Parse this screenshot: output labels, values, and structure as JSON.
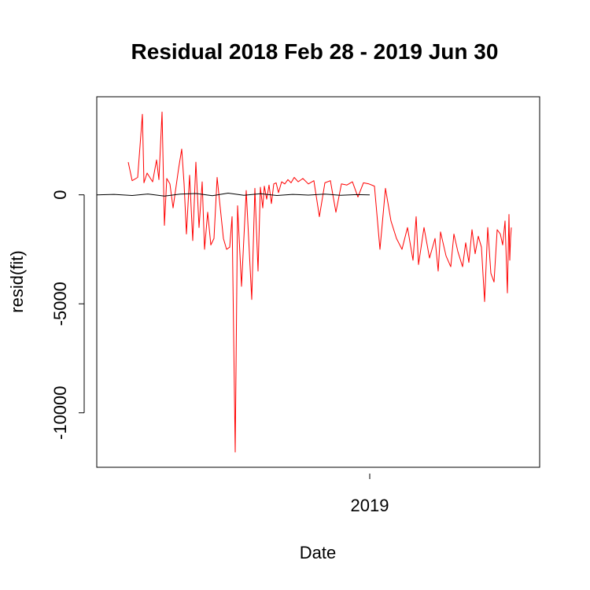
{
  "chart_data": {
    "type": "line",
    "title": "Residual  2018 Feb 28 - 2019 Jun 30",
    "xlabel": "Date",
    "ylabel": "resid(fit)",
    "xlim": [
      "2018-01-19",
      "2019-08-05"
    ],
    "ylim": [
      -12500,
      4500
    ],
    "grid": false,
    "legend": "none",
    "x_ticks": [
      {
        "label": "2019",
        "date": "2019-01-01"
      }
    ],
    "y_ticks": [
      {
        "label": "0",
        "value": 0
      },
      {
        "label": "-5000",
        "value": -5000
      },
      {
        "label": "-10000",
        "value": -10000
      }
    ],
    "series": [
      {
        "color": "#ff0000",
        "x": [
          "2018-02-28",
          "2018-03-05",
          "2018-03-12",
          "2018-03-18",
          "2018-03-20",
          "2018-03-24",
          "2018-03-31",
          "2018-04-05",
          "2018-04-08",
          "2018-04-12",
          "2018-04-15",
          "2018-04-18",
          "2018-04-22",
          "2018-04-26",
          "2018-05-03",
          "2018-05-07",
          "2018-05-10",
          "2018-05-13",
          "2018-05-17",
          "2018-05-21",
          "2018-05-25",
          "2018-05-29",
          "2018-06-02",
          "2018-06-05",
          "2018-06-09",
          "2018-06-13",
          "2018-06-17",
          "2018-06-21",
          "2018-06-25",
          "2018-06-29",
          "2018-07-03",
          "2018-07-07",
          "2018-07-10",
          "2018-07-14",
          "2018-07-17",
          "2018-07-22",
          "2018-07-28",
          "2018-08-04",
          "2018-08-08",
          "2018-08-12",
          "2018-08-15",
          "2018-08-18",
          "2018-08-20",
          "2018-08-23",
          "2018-08-26",
          "2018-08-29",
          "2018-09-01",
          "2018-09-04",
          "2018-09-07",
          "2018-09-11",
          "2018-09-15",
          "2018-09-19",
          "2018-09-23",
          "2018-09-27",
          "2018-10-02",
          "2018-10-08",
          "2018-10-15",
          "2018-10-22",
          "2018-10-29",
          "2018-11-05",
          "2018-11-12",
          "2018-11-19",
          "2018-11-26",
          "2018-12-03",
          "2018-12-10",
          "2018-12-17",
          "2018-12-24",
          "2018-12-31",
          "2019-01-07",
          "2019-01-14",
          "2019-01-21",
          "2019-01-28",
          "2019-02-04",
          "2019-02-11",
          "2019-02-18",
          "2019-02-25",
          "2019-03-01",
          "2019-03-04",
          "2019-03-11",
          "2019-03-18",
          "2019-03-25",
          "2019-03-29",
          "2019-04-01",
          "2019-04-08",
          "2019-04-14",
          "2019-04-18",
          "2019-04-23",
          "2019-04-29",
          "2019-05-03",
          "2019-05-07",
          "2019-05-11",
          "2019-05-15",
          "2019-05-19",
          "2019-05-23",
          "2019-05-27",
          "2019-05-31",
          "2019-06-04",
          "2019-06-08",
          "2019-06-12",
          "2019-06-16",
          "2019-06-19",
          "2019-06-22",
          "2019-06-25",
          "2019-06-27",
          "2019-06-28",
          "2019-06-29",
          "2019-06-30"
        ],
        "y": [
          1500,
          650,
          800,
          3700,
          550,
          1000,
          600,
          1600,
          700,
          3800,
          -1400,
          750,
          500,
          -600,
          1200,
          2100,
          500,
          -1800,
          900,
          -2100,
          1500,
          -1500,
          600,
          -2500,
          -800,
          -2300,
          -2000,
          800,
          -600,
          -2000,
          -2500,
          -2400,
          -1000,
          -11800,
          -500,
          -4200,
          200,
          -4800,
          300,
          -3500,
          350,
          -600,
          400,
          -200,
          450,
          -400,
          500,
          550,
          100,
          600,
          500,
          700,
          550,
          800,
          600,
          750,
          500,
          650,
          -1000,
          550,
          650,
          -800,
          500,
          450,
          600,
          -100,
          550,
          500,
          400,
          -2500,
          300,
          -1200,
          -2000,
          -2500,
          -1500,
          -3000,
          -1000,
          -3200,
          -1500,
          -2900,
          -2000,
          -3500,
          -1700,
          -2800,
          -3300,
          -1800,
          -2600,
          -3300,
          -2200,
          -3100,
          -1600,
          -2700,
          -1900,
          -2400,
          -4900,
          -1500,
          -3600,
          -4000,
          -1600,
          -1800,
          -2300,
          -1200,
          -4500,
          -900,
          -3000,
          -2000,
          -1500
        ]
      },
      {
        "color": "#000000",
        "x": [
          "2018-01-19",
          "2018-02-10",
          "2018-03-05",
          "2018-03-25",
          "2018-04-15",
          "2018-05-05",
          "2018-05-25",
          "2018-06-15",
          "2018-07-05",
          "2018-07-25",
          "2018-08-15",
          "2018-09-05",
          "2018-09-25",
          "2018-10-15",
          "2018-11-05",
          "2018-11-25",
          "2018-12-15",
          "2019-01-01"
        ],
        "y": [
          0,
          20,
          -30,
          40,
          -60,
          30,
          60,
          -40,
          80,
          -20,
          50,
          -30,
          20,
          -10,
          30,
          -20,
          10,
          0
        ]
      }
    ]
  }
}
